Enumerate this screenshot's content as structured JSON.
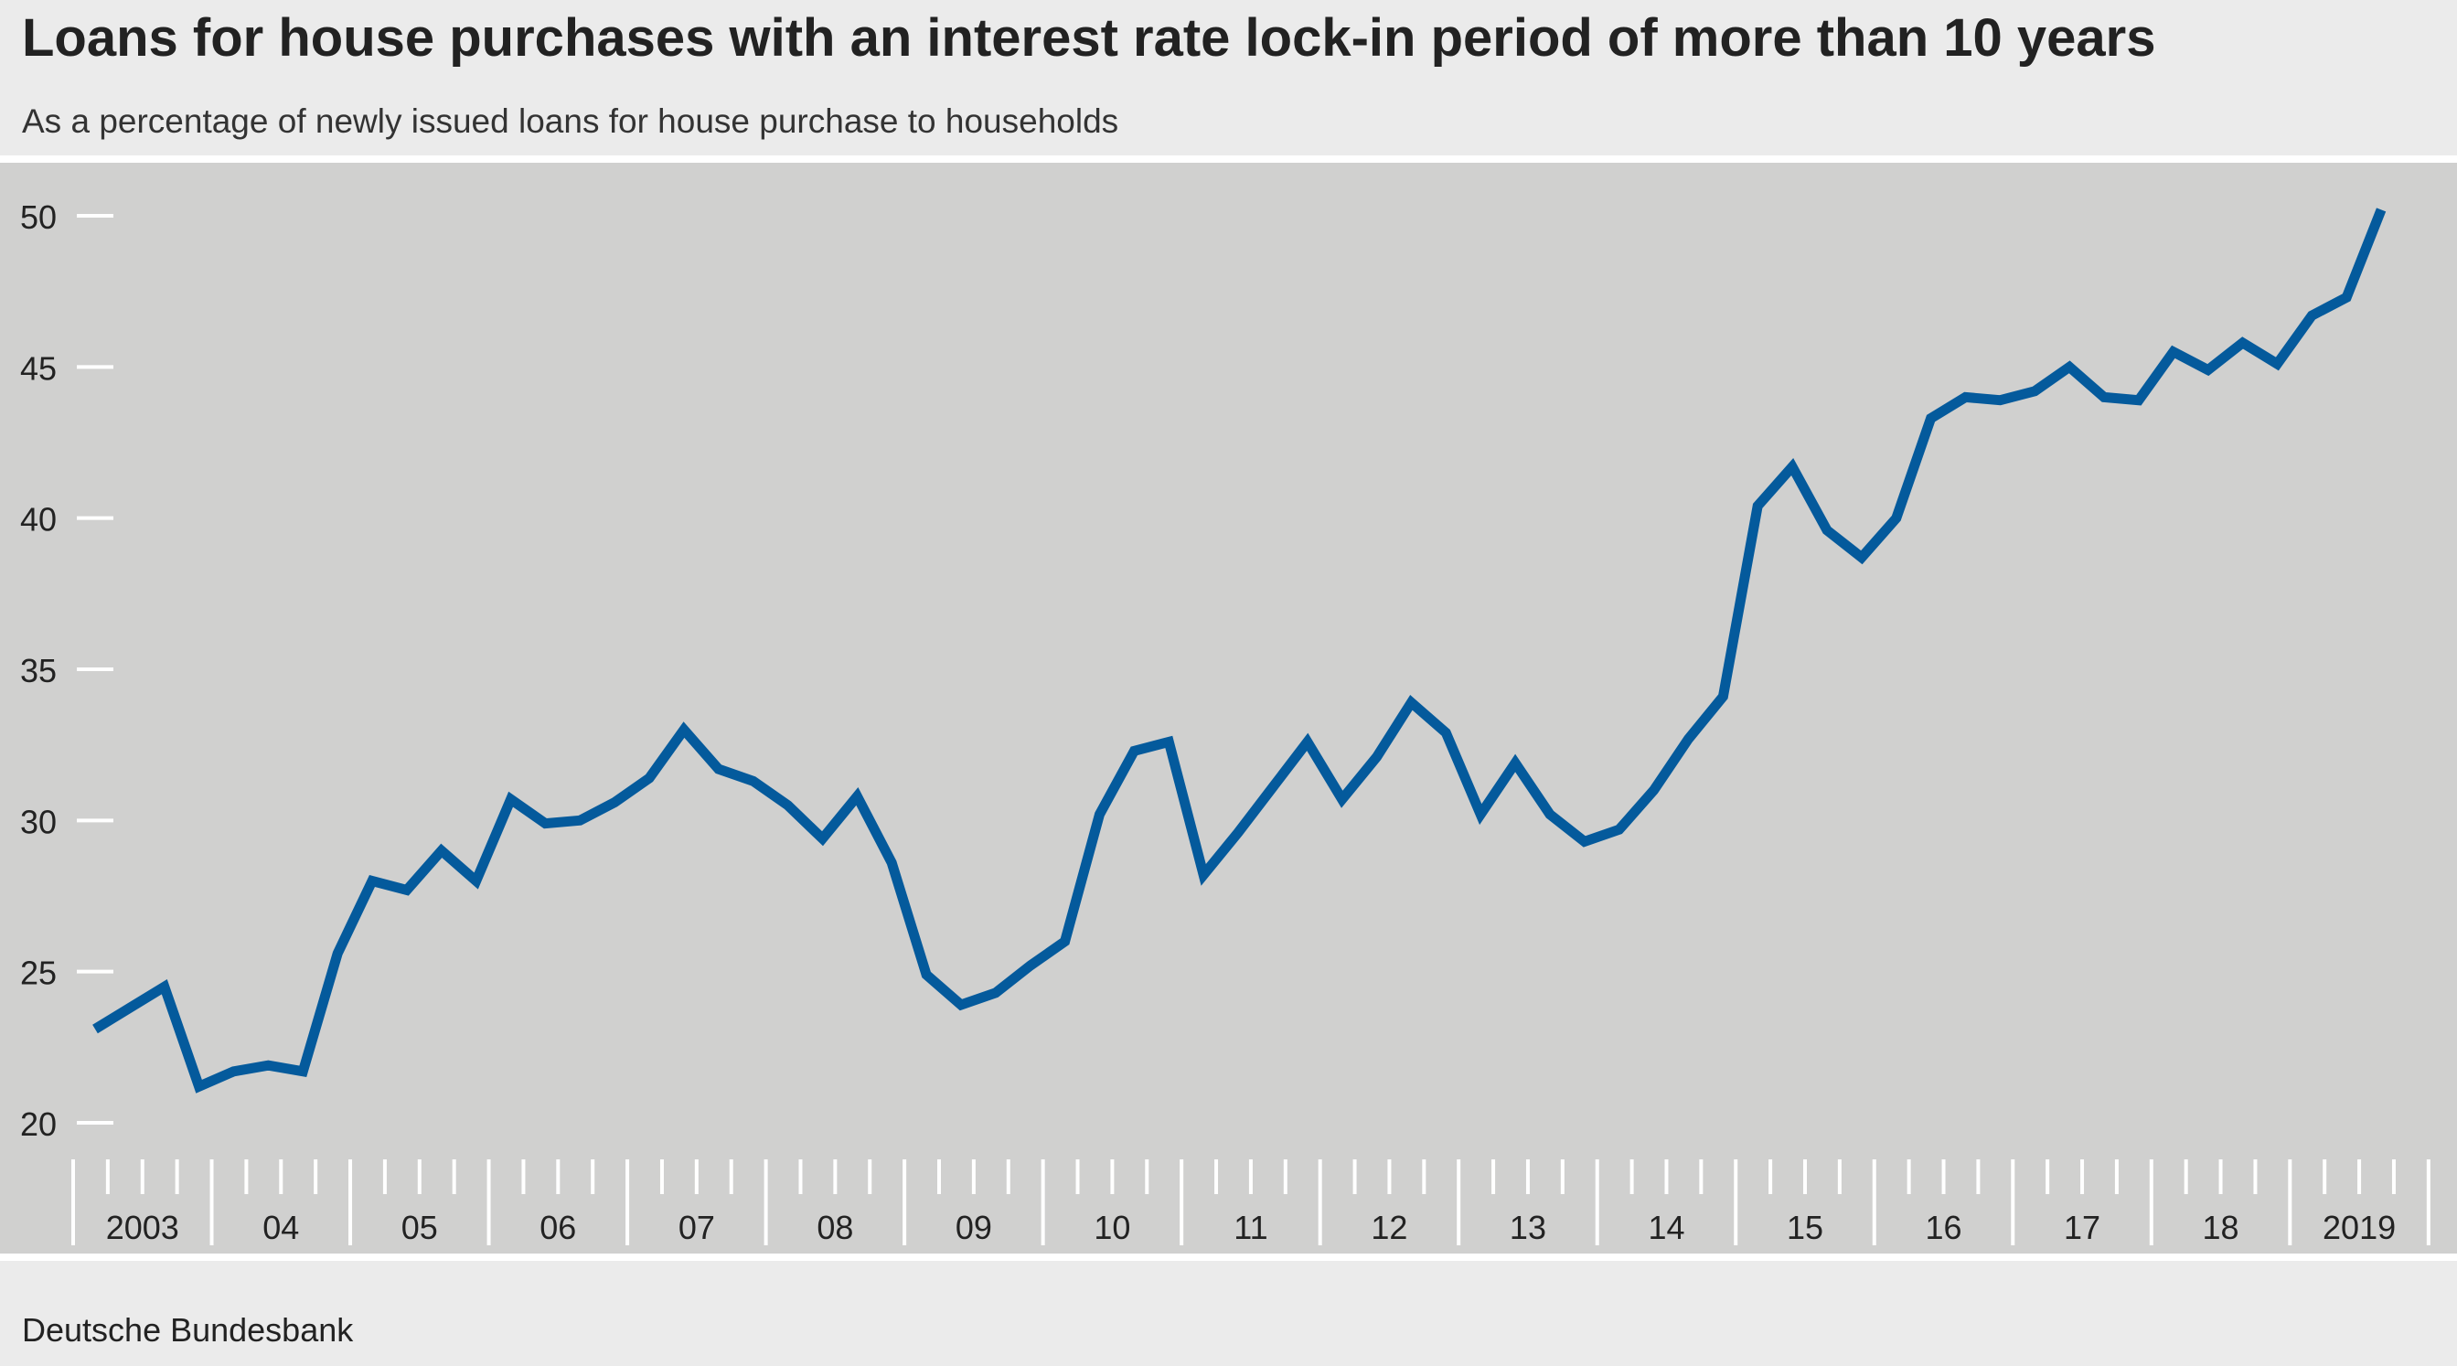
{
  "header": {
    "title": "Loans for house purchases with an interest rate lock-in period of more than 10 years",
    "subtitle": "As a percentage of newly issued loans for house purchase to households"
  },
  "footer": {
    "source": "Deutsche Bundesbank"
  },
  "colors": {
    "line": "#045a9c",
    "plot_background": "#d0d0cf",
    "page_background": "#ebebeb",
    "ticks": "#ffffff"
  },
  "chart_data": {
    "type": "line",
    "title": "Loans for house purchases with an interest rate lock-in period of more than 10 years",
    "subtitle": "As a percentage of newly issued loans for house purchase to households",
    "xlabel": "",
    "ylabel": "",
    "ylim": [
      20,
      50
    ],
    "yticks": [
      20,
      25,
      30,
      35,
      40,
      45,
      50
    ],
    "grid": false,
    "x_frequency": "quarterly",
    "x_start": "2003-Q1",
    "year_labels": [
      "2003",
      "04",
      "05",
      "06",
      "07",
      "08",
      "09",
      "10",
      "11",
      "12",
      "13",
      "14",
      "15",
      "16",
      "17",
      "18",
      "2019"
    ],
    "series": [
      {
        "values": [
          23.1,
          23.8,
          24.5,
          21.2,
          21.7,
          21.9,
          21.7,
          25.6,
          28.0,
          27.7,
          29.0,
          28.0,
          30.7,
          29.9,
          30.0,
          30.6,
          31.4,
          33.0,
          31.7,
          31.3,
          30.5,
          29.4,
          30.8,
          28.6,
          24.9,
          23.9,
          24.3,
          25.2,
          26.0,
          30.2,
          32.3,
          32.6,
          28.2,
          29.6,
          31.1,
          32.6,
          30.7,
          32.1,
          33.9,
          32.9,
          30.2,
          31.9,
          30.2,
          29.3,
          29.7,
          31.0,
          32.7,
          34.1,
          40.4,
          41.7,
          39.6,
          38.7,
          40.0,
          43.3,
          44.0,
          43.9,
          44.2,
          45.0,
          44.0,
          43.9,
          45.5,
          44.9,
          45.8,
          45.1,
          46.7,
          47.3,
          50.2
        ]
      }
    ]
  }
}
